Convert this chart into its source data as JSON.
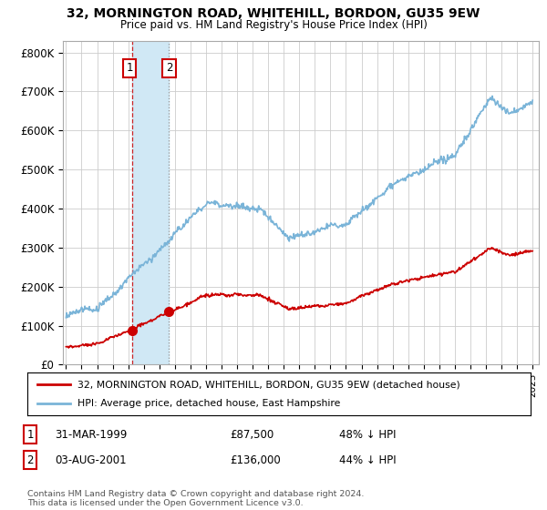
{
  "title": "32, MORNINGTON ROAD, WHITEHILL, BORDON, GU35 9EW",
  "subtitle": "Price paid vs. HM Land Registry's House Price Index (HPI)",
  "ylabel_ticks": [
    "£0",
    "£100K",
    "£200K",
    "£300K",
    "£400K",
    "£500K",
    "£600K",
    "£700K",
    "£800K"
  ],
  "ytick_values": [
    0,
    100000,
    200000,
    300000,
    400000,
    500000,
    600000,
    700000,
    800000
  ],
  "ylim": [
    0,
    830000
  ],
  "xlim_start": 1994.8,
  "xlim_end": 2025.4,
  "purchase1_year": 1999.24,
  "purchase1_price": 87500,
  "purchase2_year": 2001.58,
  "purchase2_price": 136000,
  "legend_line1": "32, MORNINGTON ROAD, WHITEHILL, BORDON, GU35 9EW (detached house)",
  "legend_line2": "HPI: Average price, detached house, East Hampshire",
  "table_row1": [
    "1",
    "31-MAR-1999",
    "£87,500",
    "48% ↓ HPI"
  ],
  "table_row2": [
    "2",
    "03-AUG-2001",
    "£136,000",
    "44% ↓ HPI"
  ],
  "footnote": "Contains HM Land Registry data © Crown copyright and database right 2024.\nThis data is licensed under the Open Government Licence v3.0.",
  "hpi_color": "#7ab4d8",
  "price_color": "#CC0000",
  "annotation_box_color": "#CC0000",
  "background_color": "#FFFFFF",
  "grid_color": "#CCCCCC",
  "shade_color": "#d0e8f5",
  "vline_color": "#CC0000"
}
